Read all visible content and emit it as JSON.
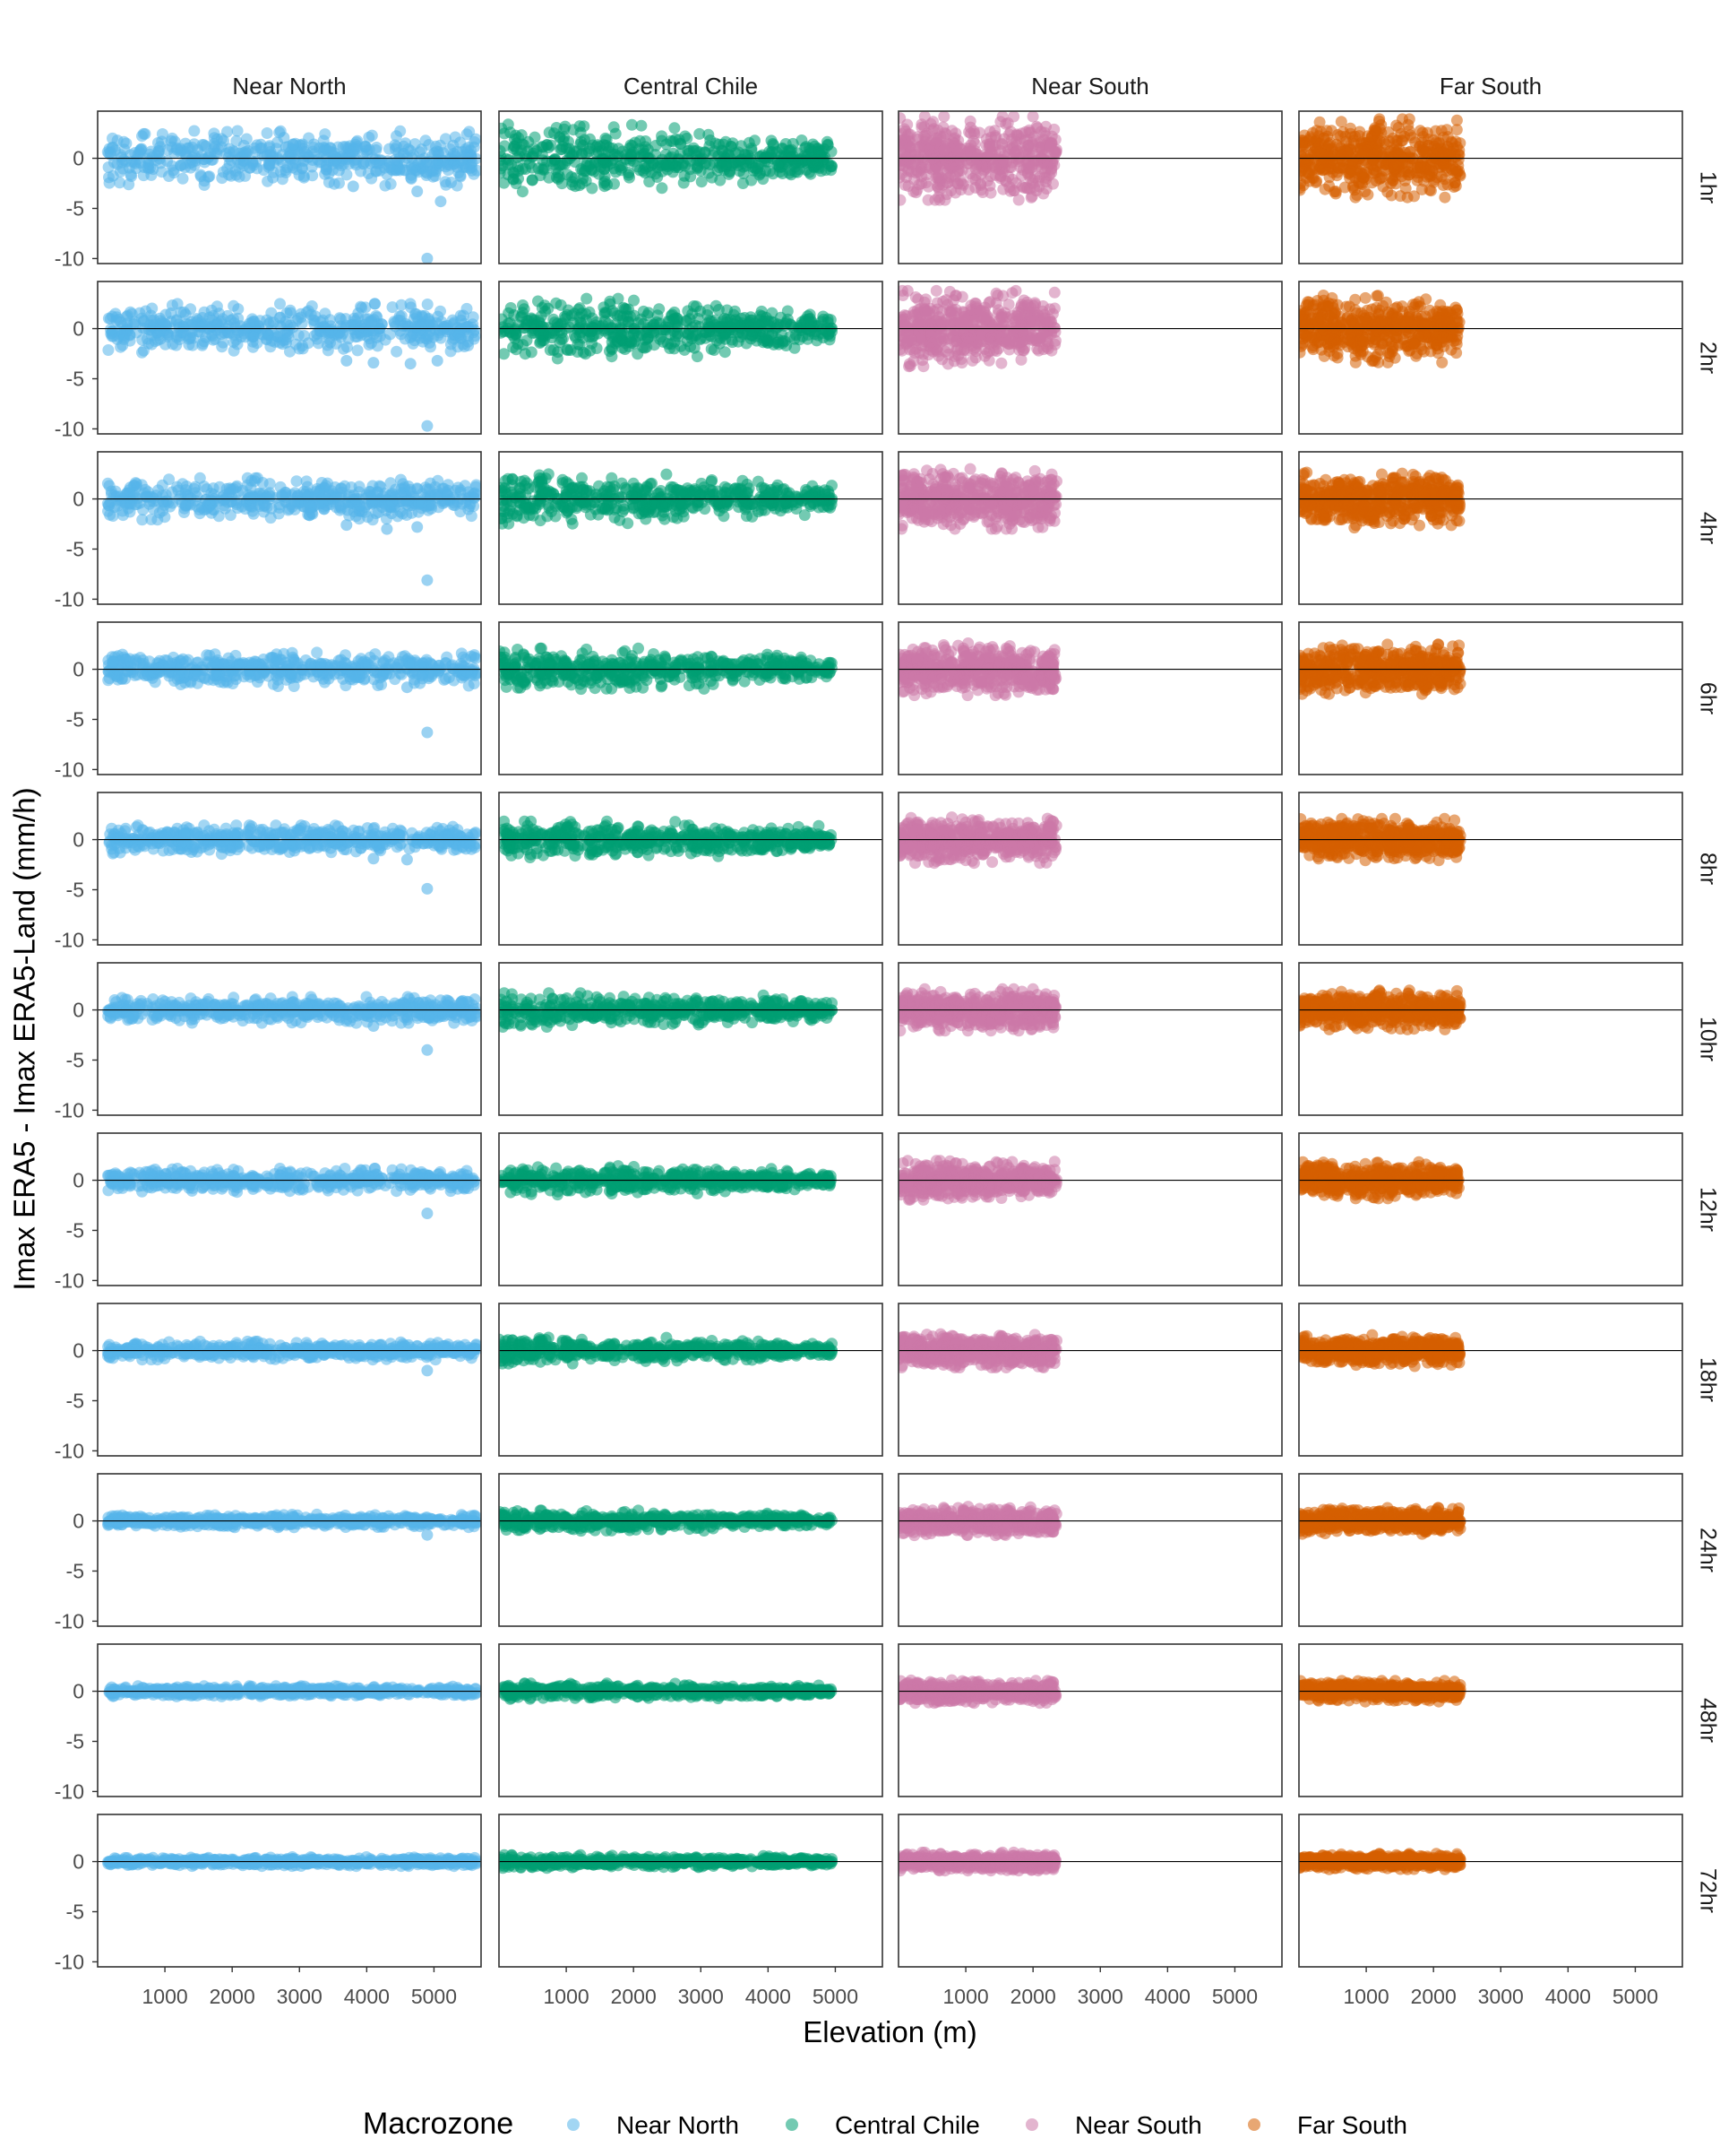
{
  "chart_data": {
    "type": "scatter",
    "xlabel": "Elevation (m)",
    "ylabel": "Imax ERA5 - Imax ERA5-Land (mm/h)",
    "x_ticks": [
      1000,
      2000,
      3000,
      4000,
      5000
    ],
    "y_ticks": [
      0,
      -5,
      -10
    ],
    "ylim": [
      -10.5,
      4.7
    ],
    "reference_line_y": 0,
    "grid": false,
    "legend": {
      "title": "Macrozone",
      "position": "bottom",
      "items": [
        {
          "name": "Near North",
          "color": "#56B4E9"
        },
        {
          "name": "Central Chile",
          "color": "#009E73"
        },
        {
          "name": "Near South",
          "color": "#CC79A7"
        },
        {
          "name": "Far South",
          "color": "#D55E00"
        }
      ]
    },
    "columns": [
      {
        "name": "Near North",
        "color": "#56B4E9",
        "xlim": [
          0,
          5700
        ],
        "x_range": [
          150,
          5650
        ]
      },
      {
        "name": "Central Chile",
        "color": "#009E73",
        "xlim": [
          0,
          5700
        ],
        "x_range": [
          0,
          4950
        ]
      },
      {
        "name": "Near South",
        "color": "#CC79A7",
        "xlim": [
          0,
          5700
        ],
        "x_range": [
          0,
          2350
        ]
      },
      {
        "name": "Far South",
        "color": "#D55E00",
        "xlim": [
          0,
          5700
        ],
        "x_range": [
          0,
          2400
        ]
      }
    ],
    "rows": [
      "1hr",
      "2hr",
      "4hr",
      "6hr",
      "8hr",
      "10hr",
      "12hr",
      "18hr",
      "24hr",
      "48hr",
      "72hr"
    ],
    "spread": {
      "Near North": [
        2.1,
        1.9,
        1.6,
        1.3,
        1.1,
        1.0,
        0.9,
        0.7,
        0.5,
        0.4,
        0.35
      ],
      "Central Chile": [
        2.6,
        2.3,
        1.9,
        1.6,
        1.4,
        1.3,
        1.1,
        1.0,
        0.8,
        0.6,
        0.5
      ],
      "Near South": [
        3.2,
        2.9,
        2.3,
        2.0,
        1.8,
        1.6,
        1.5,
        1.3,
        1.1,
        0.9,
        0.7
      ],
      "Far South": [
        3.0,
        2.6,
        2.2,
        1.9,
        1.6,
        1.5,
        1.4,
        1.2,
        1.0,
        0.8,
        0.6
      ]
    },
    "outliers": {
      "Near North": [
        [
          [
            4900,
            -10.0
          ],
          [
            5100,
            -4.3
          ],
          [
            4750,
            -3.3
          ],
          [
            3800,
            -2.8
          ]
        ],
        [
          [
            4900,
            -9.7
          ],
          [
            4650,
            -3.5
          ],
          [
            4100,
            -3.4
          ],
          [
            3700,
            -3.2
          ],
          [
            5050,
            -3.2
          ]
        ],
        [
          [
            4900,
            -8.1
          ],
          [
            4300,
            -3.0
          ],
          [
            4750,
            -2.8
          ],
          [
            3700,
            -2.6
          ]
        ],
        [
          [
            4900,
            -6.3
          ],
          [
            4600,
            -1.8
          ]
        ],
        [
          [
            4900,
            -4.9
          ],
          [
            4600,
            -2.0
          ],
          [
            4100,
            -1.9
          ]
        ],
        [
          [
            4900,
            -4.0
          ],
          [
            4100,
            -1.6
          ]
        ],
        [
          [
            4900,
            -3.3
          ]
        ],
        [
          [
            4900,
            -2.0
          ]
        ],
        [
          [
            4900,
            -1.4
          ]
        ],
        [],
        []
      ]
    }
  }
}
